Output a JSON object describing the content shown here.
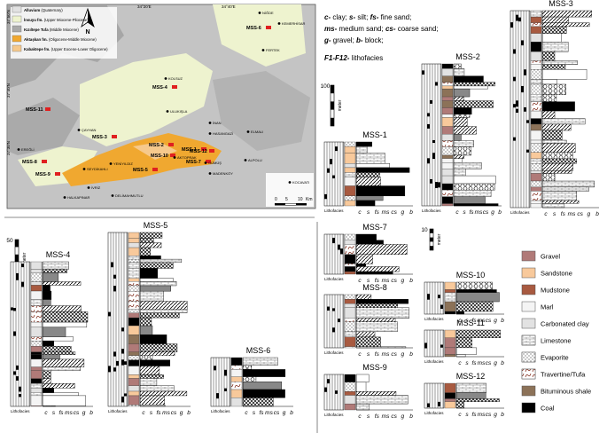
{
  "map": {
    "north": "N",
    "lon": [
      "34°20'E",
      "34°40'E"
    ],
    "lat": [
      "37°50'N",
      "37°40'N",
      "37°30'N"
    ],
    "legend": [
      {
        "name": "Alluvium",
        "age": "(Quaternary)",
        "color": "#e2e2e2"
      },
      {
        "name": "İnsuyu fm.",
        "age": "(Upper Miocene-Pliocene)",
        "color": "#eef3cf"
      },
      {
        "name": "Kızıltepe Tufa",
        "age": "(Middle Miocene)",
        "color": "#a9a9a9"
      },
      {
        "name": "Aktaşkan fm.",
        "age": "(Oligocene-Middle Miocene)",
        "color": "#f0a830"
      },
      {
        "name": "Kabaktepe fm.",
        "age": "(Upper Eocene-Lower Oligocene)",
        "color": "#f6c98c"
      }
    ],
    "sites": [
      "MSS-1",
      "MSS-2",
      "MSS-3",
      "MSS-4",
      "MSS-5",
      "MSS-6",
      "MSS-7",
      "MSS-8",
      "MSS-9",
      "MSS-10",
      "MSS-11",
      "MSS-12"
    ],
    "towns": [
      "NİĞDE",
      "KEMERHİSAR",
      "FERTEK",
      "KOLSUZ",
      "ÇAYHAN",
      "ULUKIŞLA",
      "İNAN",
      "HASANGAZİ",
      "ELMALI",
      "AKTOPRAK",
      "YENİYILDIZ",
      "SEYDİKAHLI",
      "GÜMÜŞ",
      "MADENKÖY",
      "ALPOLU",
      "KOCAVATI",
      "EREĞLİ",
      "İVRİZ",
      "HALKAPINAR",
      "DELİMAHMUTLU"
    ],
    "scale": [
      "0",
      "5",
      "10",
      "Km"
    ]
  },
  "abbreviations": [
    [
      {
        "code": "c-",
        "text": " clay;"
      },
      {
        "code": "s-",
        "text": " silt;"
      },
      {
        "code": "fs-",
        "text": " fine sand;"
      }
    ],
    [
      {
        "code": "ms-",
        "text": " medium sand;"
      },
      {
        "code": "cs-",
        "text": " coarse sand;"
      }
    ],
    [
      {
        "code": "g-",
        "text": " gravel;"
      },
      {
        "code": "b-",
        "text": " block;"
      }
    ],
    [
      {
        "code": "F1-F12-",
        "text": " lithofacies"
      }
    ]
  ],
  "columns": [
    "MSS-1",
    "MSS-2",
    "MSS-3",
    "MSS-4",
    "MSS-5",
    "MSS-6",
    "MSS-7",
    "MSS-8",
    "MSS-9",
    "MSS-10",
    "MSS-11",
    "MSS-12"
  ],
  "column_axis": {
    "lithofacies": "Lithofacies",
    "grain_sizes": [
      "c",
      "s",
      "fs",
      "ms",
      "cs",
      "g",
      "b"
    ]
  },
  "scales": [
    {
      "value": "100",
      "unit": "meter"
    },
    {
      "value": "50",
      "unit": "meter"
    },
    {
      "value": "10",
      "unit": "meter"
    }
  ],
  "legend": [
    {
      "label": "Gravel",
      "color": "#b07a78"
    },
    {
      "label": "Sandstone",
      "color": "#f8c99b"
    },
    {
      "label": "Mudstone",
      "color": "#a85a40"
    },
    {
      "label": "Marl",
      "color": "#f4f4f4"
    },
    {
      "label": "Carbonated clay",
      "color": "#e2e2e2"
    },
    {
      "label": "Limestone",
      "color": "#ffffff",
      "pattern": "brick"
    },
    {
      "label": "Evaporite",
      "color": "#ffffff",
      "pattern": "dots"
    },
    {
      "label": "Travertine/Tufa",
      "color": "#ffffff",
      "pattern": "tufa"
    },
    {
      "label": "Bituminous shale",
      "color": "#8c7258"
    },
    {
      "label": "Coal",
      "color": "#000000"
    }
  ]
}
